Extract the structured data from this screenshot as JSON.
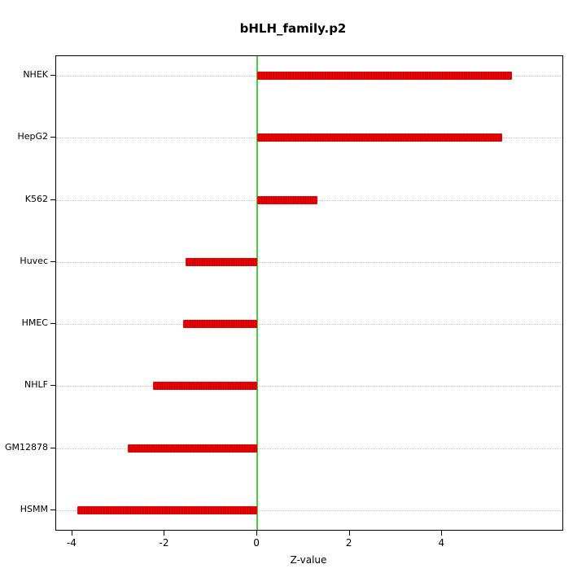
{
  "chart_data": {
    "type": "bar",
    "orientation": "horizontal",
    "title": "bHLH_family.p2",
    "xlabel": "Z-value",
    "ylabel": "",
    "categories": [
      "NHEK",
      "HepG2",
      "K562",
      "Huvec",
      "HMEC",
      "NHLF",
      "GM12878",
      "HSMM"
    ],
    "values": [
      5.5,
      5.3,
      1.3,
      -1.55,
      -1.6,
      -2.25,
      -2.8,
      -3.9
    ],
    "xlim": [
      -4.35,
      6.6
    ],
    "x_ticks": [
      -4,
      -2,
      0,
      2,
      4
    ],
    "grid": "horizontal-dotted",
    "bar_color": "#ee0000",
    "bar_color_dark": "#bf0000",
    "zero_line_color": "#44cc44",
    "grid_color": "#c8c8c8",
    "legend": "none"
  }
}
